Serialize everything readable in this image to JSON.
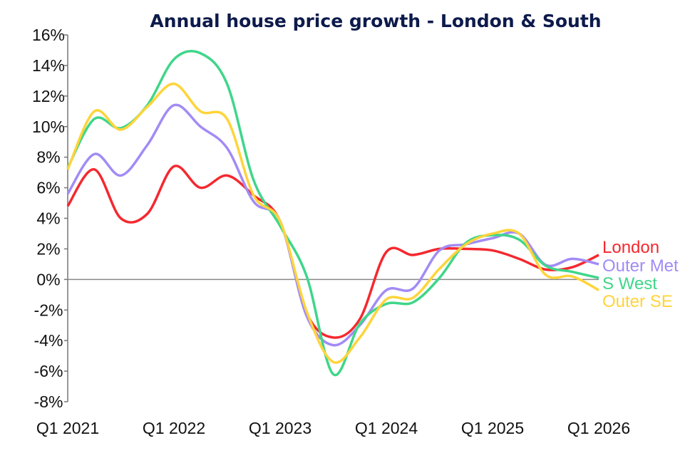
{
  "chart_data": {
    "type": "line",
    "title": "Annual house price growth - London & South",
    "xlabel": "",
    "ylabel": "",
    "ylim": [
      -8,
      16
    ],
    "y_ticks": [
      "16%",
      "14%",
      "12%",
      "10%",
      "8%",
      "6%",
      "4%",
      "2%",
      "0%",
      "-2%",
      "-4%",
      "-6%",
      "-8%"
    ],
    "y_tick_values": [
      16,
      14,
      12,
      10,
      8,
      6,
      4,
      2,
      0,
      -2,
      -4,
      -6,
      -8
    ],
    "x_tick_labels": [
      "Q1 2021",
      "Q1 2022",
      "Q1 2023",
      "Q1 2024",
      "Q1 2025",
      "Q1 2026"
    ],
    "x": [
      "Q1 2021",
      "Q2 2021",
      "Q3 2021",
      "Q4 2021",
      "Q1 2022",
      "Q2 2022",
      "Q3 2022",
      "Q4 2022",
      "Q1 2023",
      "Q2 2023",
      "Q3 2023",
      "Q4 2023",
      "Q1 2024",
      "Q2 2024",
      "Q3 2024",
      "Q4 2024",
      "Q1 2025",
      "Q2 2025",
      "Q3 2025",
      "Q4 2025",
      "Q1 2026"
    ],
    "grid": false,
    "zero_line": true,
    "legend": "right end labels",
    "series": [
      {
        "name": "London",
        "color": "#f5282f",
        "values": [
          4.8,
          7.2,
          4.0,
          4.3,
          7.4,
          6.0,
          6.8,
          5.5,
          3.8,
          -2.2,
          -3.8,
          -2.6,
          1.8,
          1.6,
          2.0,
          2.0,
          1.9,
          1.35,
          0.65,
          0.8,
          1.6
        ]
      },
      {
        "name": "Outer Met",
        "color": "#a28bf5",
        "values": [
          5.6,
          8.2,
          6.8,
          8.8,
          11.4,
          10.0,
          8.6,
          5.1,
          3.8,
          -2.4,
          -4.3,
          -3.0,
          -0.7,
          -0.6,
          1.9,
          2.3,
          2.7,
          3.0,
          0.95,
          1.35,
          1.0
        ]
      },
      {
        "name": "S West",
        "color": "#3fd68a",
        "values": [
          7.3,
          10.5,
          9.9,
          11.4,
          14.4,
          14.8,
          12.8,
          6.5,
          3.5,
          0.2,
          -6.2,
          -2.9,
          -1.6,
          -1.5,
          0.1,
          2.4,
          2.9,
          2.6,
          0.9,
          0.5,
          0.1
        ]
      },
      {
        "name": "Outer SE",
        "color": "#ffd43b",
        "values": [
          7.2,
          11.0,
          9.8,
          11.3,
          12.8,
          11.0,
          10.5,
          5.5,
          3.8,
          -2.1,
          -5.4,
          -3.8,
          -1.3,
          -1.2,
          0.7,
          2.3,
          3.0,
          3.0,
          0.3,
          0.2,
          -0.7
        ]
      }
    ]
  }
}
